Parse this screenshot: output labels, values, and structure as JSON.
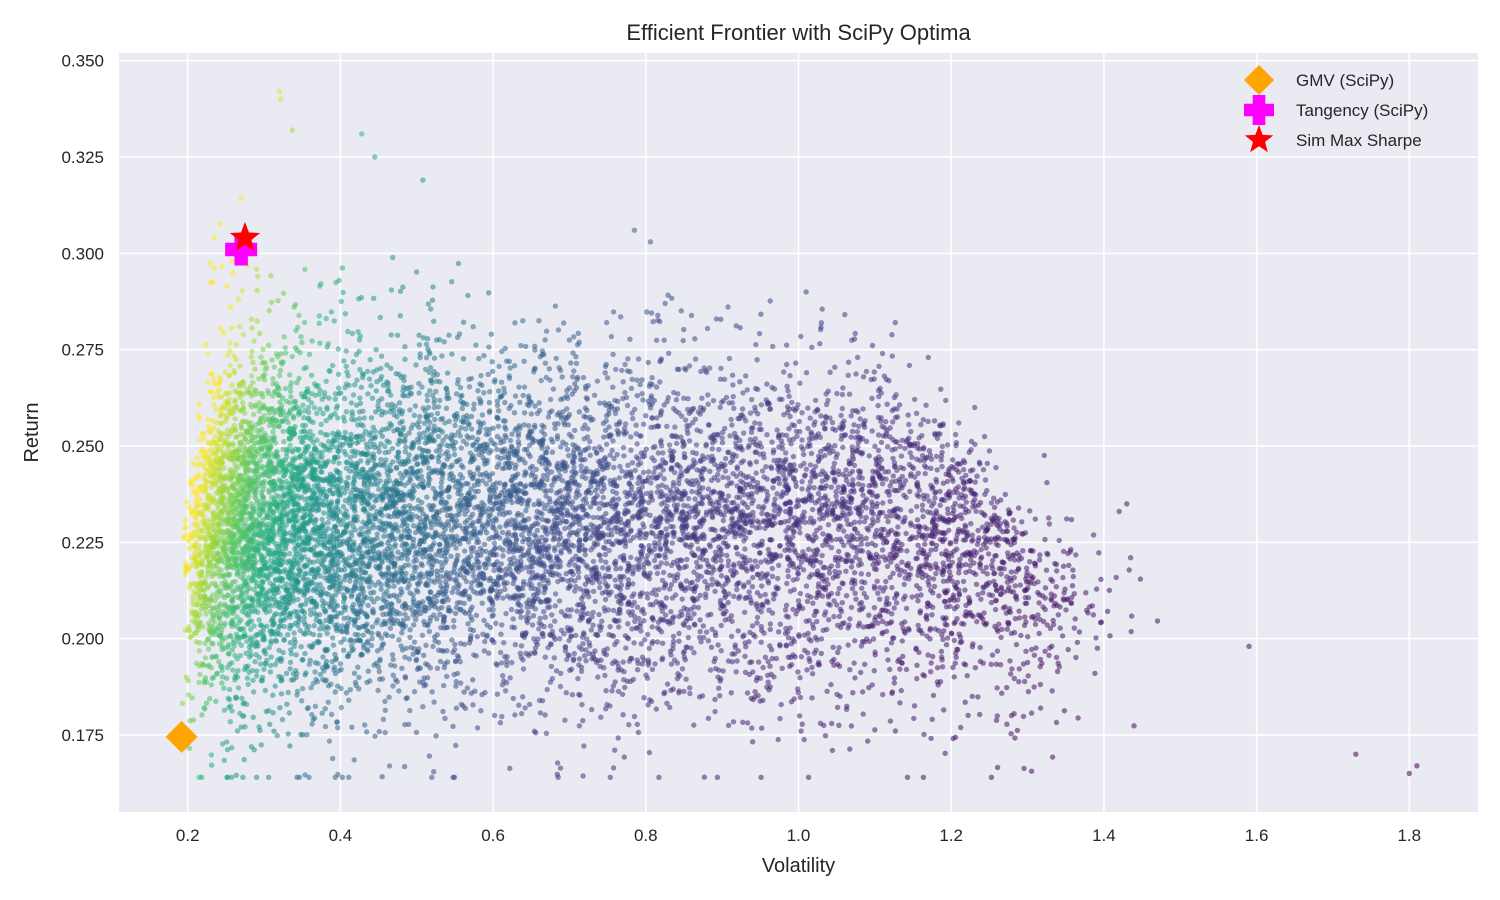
{
  "chart_data": {
    "type": "scatter",
    "title": "Efficient Frontier with SciPy Optima",
    "xlabel": "Volatility",
    "ylabel": "Return",
    "xlim": [
      0.11,
      1.89
    ],
    "ylim": [
      0.155,
      0.352
    ],
    "xticks": [
      0.2,
      0.4,
      0.6,
      0.8,
      1.0,
      1.2,
      1.4,
      1.6,
      1.8
    ],
    "xtick_labels": [
      "0.2",
      "0.4",
      "0.6",
      "0.8",
      "1.0",
      "1.2",
      "1.4",
      "1.6",
      "1.8"
    ],
    "yticks": [
      0.175,
      0.2,
      0.225,
      0.25,
      0.275,
      0.3,
      0.325,
      0.35
    ],
    "ytick_labels": [
      "0.175",
      "0.200",
      "0.225",
      "0.250",
      "0.275",
      "0.300",
      "0.325",
      "0.350"
    ],
    "grid": true,
    "background": "#eaeaf2",
    "colormap": "viridis",
    "color_by": "sharpe_ratio",
    "legend_position": "top-right",
    "simulated_portfolios": {
      "description_count": 10000,
      "sample_points": [
        {
          "x": 0.32,
          "y": 0.342,
          "sharpe": 0.95
        },
        {
          "x": 0.322,
          "y": 0.34,
          "sharpe": 0.94
        },
        {
          "x": 0.337,
          "y": 0.332,
          "sharpe": 0.85
        },
        {
          "x": 0.428,
          "y": 0.331,
          "sharpe": 0.62
        },
        {
          "x": 0.445,
          "y": 0.325,
          "sharpe": 0.58
        },
        {
          "x": 0.508,
          "y": 0.319,
          "sharpe": 0.48
        },
        {
          "x": 0.785,
          "y": 0.306,
          "sharpe": 0.25
        },
        {
          "x": 0.806,
          "y": 0.303,
          "sharpe": 0.24
        },
        {
          "x": 1.01,
          "y": 0.29,
          "sharpe": 0.12
        },
        {
          "x": 1.03,
          "y": 0.282,
          "sharpe": 0.11
        },
        {
          "x": 1.11,
          "y": 0.274,
          "sharpe": 0.08
        },
        {
          "x": 1.17,
          "y": 0.273,
          "sharpe": 0.07
        },
        {
          "x": 1.21,
          "y": 0.256,
          "sharpe": 0.05
        },
        {
          "x": 1.43,
          "y": 0.235,
          "sharpe": 0.02
        },
        {
          "x": 1.42,
          "y": 0.233,
          "sharpe": 0.02
        },
        {
          "x": 1.59,
          "y": 0.198,
          "sharpe": 0.0
        },
        {
          "x": 1.73,
          "y": 0.17,
          "sharpe": 0.0
        },
        {
          "x": 1.8,
          "y": 0.165,
          "sharpe": 0.0
        },
        {
          "x": 1.81,
          "y": 0.167,
          "sharpe": 0.0
        },
        {
          "x": 0.27,
          "y": 0.177,
          "sharpe": 0.55
        },
        {
          "x": 0.415,
          "y": 0.177,
          "sharpe": 0.35
        }
      ]
    },
    "series": [
      {
        "name": "GMV (SciPy)",
        "marker": "diamond",
        "color": "#ffa500",
        "x": 0.192,
        "y": 0.1745
      },
      {
        "name": "Tangency (SciPy)",
        "marker": "plus",
        "color": "#ff00ff",
        "x": 0.27,
        "y": 0.301
      },
      {
        "name": "Sim Max Sharpe",
        "marker": "star",
        "color": "#ff0000",
        "x": 0.275,
        "y": 0.304
      }
    ]
  }
}
